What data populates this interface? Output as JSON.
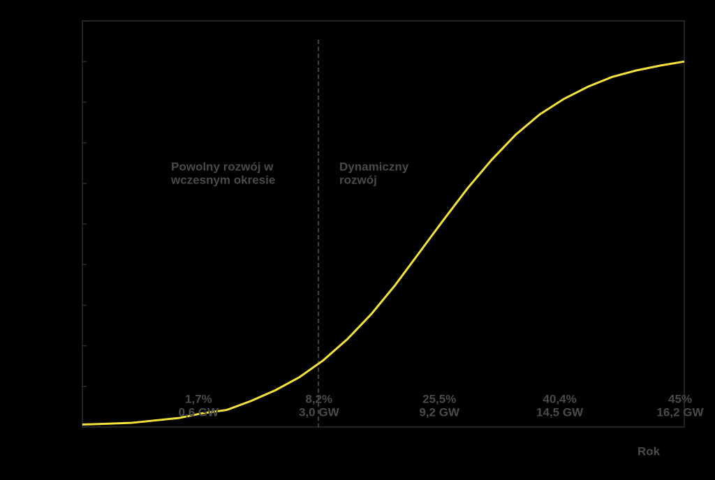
{
  "chart_data": {
    "type": "line",
    "x_label": "Rok",
    "categories": [
      null,
      null,
      null,
      null,
      null,
      null,
      null,
      null,
      null,
      null,
      null,
      null,
      null,
      null,
      null,
      null,
      null,
      null,
      null,
      null,
      null,
      null,
      null,
      null,
      null,
      null
    ],
    "series": [
      {
        "color": "#f5e23a",
        "values": [
          0.3,
          0.4,
          0.5,
          0.8,
          1.1,
          1.7,
          2.1,
          3.2,
          4.5,
          6.1,
          8.2,
          10.8,
          13.9,
          17.5,
          21.5,
          25.5,
          29.4,
          32.9,
          36.0,
          38.5,
          40.4,
          41.9,
          43.1,
          43.9,
          44.5,
          45
        ],
        "value_labels": [
          null,
          null,
          null,
          null,
          null,
          "1,7%",
          null,
          null,
          null,
          null,
          "8,2%",
          null,
          null,
          null,
          null,
          "25,5%",
          null,
          null,
          null,
          null,
          "40,4%",
          null,
          null,
          null,
          null,
          "45%"
        ],
        "capacity_labels": [
          null,
          null,
          null,
          null,
          null,
          "0,6 GW",
          null,
          null,
          null,
          null,
          "3,0 GW",
          null,
          null,
          null,
          null,
          "9,2 GW",
          null,
          null,
          null,
          null,
          "14,5 GW",
          null,
          null,
          null,
          null,
          "16,2 GW"
        ]
      }
    ],
    "annotations": [
      {
        "lines": [
          "Powolny rozwój w",
          "wczesnym okresie"
        ]
      },
      {
        "lines": [
          "Dynamiczny",
          "rozwój"
        ]
      }
    ],
    "ylim": [
      0,
      50
    ],
    "yticks": [
      0,
      5,
      10,
      15,
      20,
      25,
      30,
      35,
      40,
      45,
      50
    ]
  }
}
